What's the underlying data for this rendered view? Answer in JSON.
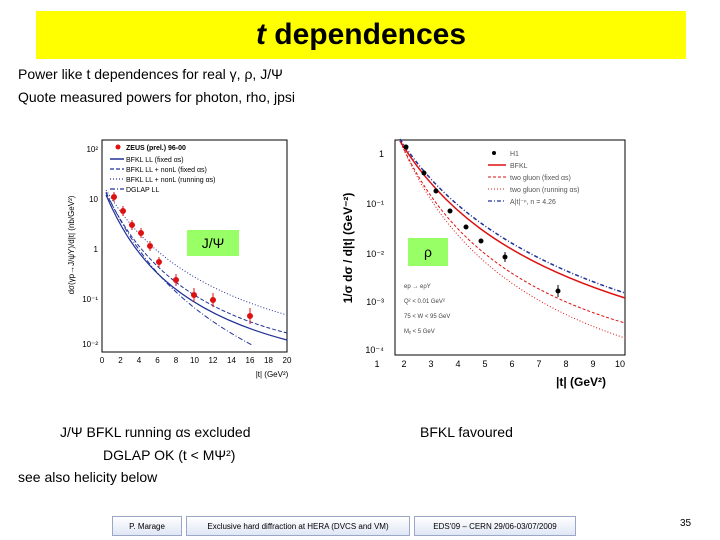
{
  "title": {
    "italic": "t",
    "rest": " dependences"
  },
  "intro": {
    "line1": "Power like t dependences for real γ, ρ, J/Ψ",
    "line2": "Quote measured powers for photon, rho, jpsi"
  },
  "left_plot": {
    "tag": "J/Ψ",
    "legend": [
      "ZEUS (prel.) 96-00",
      "BFKL LL (fixed αs)",
      "BFKL LL + nonL (fixed αs)",
      "BFKL LL + nonL (running αs)",
      "DGLAP LL"
    ],
    "ylabel": "dσ(γp→J/ψY)/d|t| (nb/GeV²)",
    "xlabel": "|t| (GeV²)",
    "yticks": [
      "10⁻²",
      "10⁻¹",
      "1",
      "10",
      "10²"
    ],
    "xticks": [
      "0",
      "2",
      "4",
      "6",
      "8",
      "10",
      "12",
      "14",
      "16",
      "18",
      "20"
    ]
  },
  "right_plot": {
    "tag": "ρ",
    "legend": [
      "H1",
      "BFKL",
      "two gluon (fixed αs)",
      "two gluon (running αs)",
      "A|t|⁻ⁿ, n = 4.26"
    ],
    "ylabel": "1/σ dσ / d|t| (GeV⁻²)",
    "xlabel": "|t| (GeV²)",
    "yticks": [
      "1",
      "10⁻¹",
      "10⁻²",
      "10⁻³",
      "10⁻⁴"
    ],
    "xticks": [
      "1",
      "2",
      "3",
      "4",
      "5",
      "6",
      "7",
      "8",
      "9",
      "10"
    ],
    "conditions": [
      "ep → eρY",
      "Q² < 0.01 GeV²",
      "75 < W < 95 GeV",
      "Mᵧ < 5 GeV"
    ]
  },
  "captions": {
    "left_line1": "J/Ψ BFKL running αs excluded",
    "left_line2": "DGLAP OK (t < MΨ²)",
    "left_line3": "see also helicity below",
    "right": "BFKL favoured"
  },
  "footer": {
    "author": "P. Marage",
    "talk": "Exclusive hard diffraction at HERA (DVCS and VM)",
    "conf": "EDS'09 – CERN 29/06-03/07/2009",
    "page": "35"
  }
}
